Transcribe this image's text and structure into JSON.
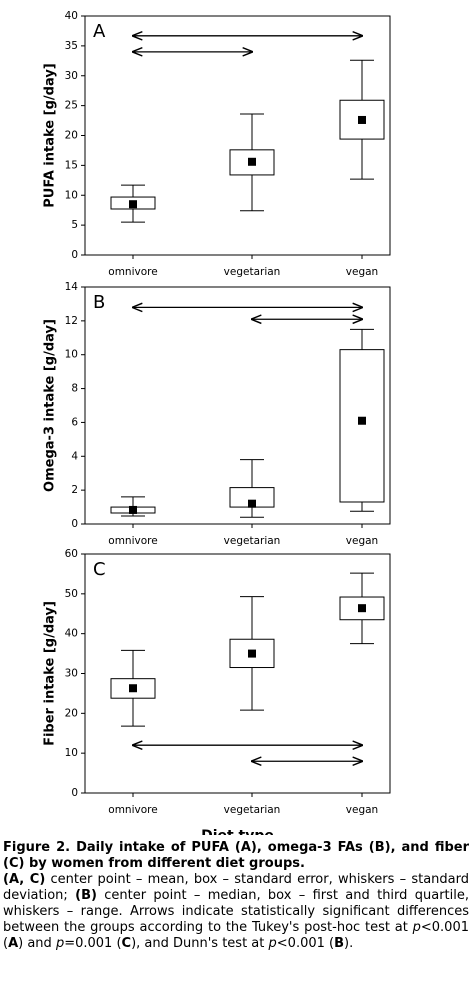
{
  "chart_data": [
    {
      "type": "box",
      "panel_label": "A",
      "ylabel": "PUFA intake [g/day]",
      "categories": [
        "omnivore",
        "vegetarian",
        "vegan"
      ],
      "whisker_low": [
        5.5,
        7.4,
        12.7
      ],
      "box_low": [
        7.7,
        13.4,
        19.4
      ],
      "center": [
        8.5,
        15.6,
        22.6
      ],
      "box_high": [
        9.7,
        17.6,
        25.9
      ],
      "whisker_high": [
        11.7,
        23.6,
        32.6
      ],
      "ylim": [
        0,
        40
      ],
      "yticks": [
        0,
        5,
        10,
        15,
        20,
        25,
        30,
        35,
        40
      ]
    },
    {
      "type": "box",
      "panel_label": "B",
      "ylabel": "Omega-3 intake [g/day]",
      "categories": [
        "omnivore",
        "vegetarian",
        "vegan"
      ],
      "whisker_low": [
        0.47,
        0.4,
        0.75
      ],
      "box_low": [
        0.65,
        1.0,
        1.3
      ],
      "center": [
        0.83,
        1.2,
        6.1
      ],
      "box_high": [
        1.0,
        2.15,
        10.3
      ],
      "whisker_high": [
        1.6,
        3.8,
        11.5
      ],
      "ylim": [
        0,
        14
      ],
      "yticks": [
        0,
        2,
        4,
        6,
        8,
        10,
        12,
        14
      ]
    },
    {
      "type": "box",
      "panel_label": "C",
      "ylabel": "Fiber intake [g/day]",
      "xlabel": "Diet type",
      "categories": [
        "omnivore",
        "vegetarian",
        "vegan"
      ],
      "whisker_low": [
        16.8,
        20.8,
        37.5
      ],
      "box_low": [
        23.8,
        31.5,
        43.5
      ],
      "center": [
        26.3,
        35,
        46.4
      ],
      "box_high": [
        28.7,
        38.6,
        49.2
      ],
      "whisker_high": [
        35.8,
        49.3,
        55.2
      ],
      "ylim": [
        0,
        60
      ],
      "yticks": [
        0,
        10,
        20,
        30,
        40,
        50,
        60
      ]
    }
  ],
  "caption": {
    "title": "Figure 2. Daily intake of PUFA (A), omega-3 FAs (B), and fiber (C) by women from different diet groups.",
    "body": [
      {
        "text": "(A, C)",
        "style": "bold"
      },
      {
        "text": " center point – mean, box – standard error, whiskers – standard deviation; "
      },
      {
        "text": "(B)",
        "style": "bold"
      },
      {
        "text": " center point – median, box – first and third quartile, whiskers – range. Arrows indicate statistically significant differences between the groups according to the Tukey's post-hoc test at "
      },
      {
        "text": "p",
        "style": "italic"
      },
      {
        "text": "<0.001 ("
      },
      {
        "text": "A",
        "style": "bold"
      },
      {
        "text": ") and "
      },
      {
        "text": "p",
        "style": "italic"
      },
      {
        "text": "=0.001 ("
      },
      {
        "text": "C",
        "style": "bold"
      },
      {
        "text": "), and Dunn's test at "
      },
      {
        "text": "p",
        "style": "italic"
      },
      {
        "text": "<0.001 ("
      },
      {
        "text": "B",
        "style": "bold"
      },
      {
        "text": ")."
      }
    ]
  }
}
